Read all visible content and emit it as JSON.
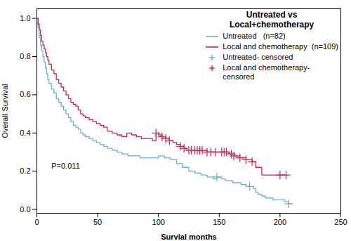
{
  "chart_data": {
    "type": "line",
    "title": "Untreated vs\nLocal+chemotherapy",
    "xlabel": "Survial months",
    "ylabel": "Overall Survival",
    "xlim": [
      0,
      250
    ],
    "ylim": [
      -0.02,
      1.05
    ],
    "xticks": [
      0,
      50,
      100,
      150,
      200,
      250
    ],
    "yticks": [
      {
        "value": 0.0,
        "label": "0.0"
      },
      0.2,
      0.4,
      0.6,
      0.8,
      {
        "value": 1.0,
        "label": "1.0"
      }
    ],
    "grid": false,
    "legend": "upper right",
    "annotations": [
      {
        "text": "P=0.011",
        "x": 12,
        "y": 0.215
      }
    ],
    "series": [
      {
        "name": "Untreated   (n=82)",
        "type": "step",
        "color": "#6baed6",
        "x": [
          0,
          1,
          2,
          3,
          4,
          5,
          6,
          7,
          8,
          9,
          10,
          12,
          14,
          16,
          18,
          20,
          22,
          24,
          26,
          28,
          30,
          32,
          34,
          36,
          38,
          40,
          43,
          46,
          49,
          52,
          55,
          58,
          62,
          66,
          70,
          75,
          80,
          85,
          90,
          95,
          100,
          105,
          110,
          115,
          120,
          125,
          130,
          135,
          140,
          145,
          148,
          152,
          155,
          158,
          161,
          165,
          168,
          172,
          175,
          178,
          180,
          182,
          185,
          188,
          191,
          194,
          197,
          200,
          204,
          207,
          210
        ],
        "values": [
          1.0,
          0.95,
          0.9,
          0.86,
          0.83,
          0.8,
          0.77,
          0.74,
          0.71,
          0.68,
          0.66,
          0.63,
          0.61,
          0.58,
          0.56,
          0.54,
          0.52,
          0.5,
          0.48,
          0.46,
          0.44,
          0.43,
          0.42,
          0.4,
          0.39,
          0.38,
          0.37,
          0.36,
          0.35,
          0.34,
          0.33,
          0.32,
          0.31,
          0.3,
          0.29,
          0.28,
          0.28,
          0.27,
          0.27,
          0.27,
          0.28,
          0.27,
          0.26,
          0.24,
          0.22,
          0.2,
          0.19,
          0.18,
          0.17,
          0.16,
          0.17,
          0.16,
          0.15,
          0.15,
          0.14,
          0.14,
          0.13,
          0.12,
          0.12,
          0.11,
          0.09,
          0.08,
          0.07,
          0.06,
          0.06,
          0.05,
          0.05,
          0.05,
          0.04,
          0.03,
          0.03
        ]
      },
      {
        "name": "Local and chemotherapy  (n=109)",
        "type": "step",
        "color": "#c9274b",
        "x": [
          0,
          1,
          2,
          3,
          4,
          5,
          6,
          7,
          8,
          9,
          10,
          12,
          14,
          16,
          18,
          20,
          22,
          24,
          26,
          28,
          30,
          32,
          34,
          36,
          38,
          40,
          43,
          46,
          49,
          52,
          55,
          58,
          62,
          66,
          70,
          74,
          78,
          82,
          86,
          90,
          95,
          98,
          100,
          103,
          106,
          109,
          112,
          115,
          118,
          121,
          123,
          125,
          127,
          130,
          132,
          134,
          136,
          138,
          140,
          143,
          145,
          147,
          150,
          152,
          154,
          156,
          158,
          160,
          162,
          165,
          167,
          169,
          172,
          175,
          177,
          180,
          185,
          190,
          195,
          200,
          205
        ],
        "values": [
          1.0,
          0.97,
          0.94,
          0.91,
          0.88,
          0.86,
          0.84,
          0.82,
          0.8,
          0.78,
          0.76,
          0.73,
          0.71,
          0.68,
          0.66,
          0.64,
          0.62,
          0.6,
          0.58,
          0.56,
          0.55,
          0.54,
          0.52,
          0.5,
          0.49,
          0.48,
          0.47,
          0.46,
          0.45,
          0.44,
          0.43,
          0.41,
          0.4,
          0.39,
          0.38,
          0.4,
          0.39,
          0.38,
          0.37,
          0.37,
          0.36,
          0.4,
          0.39,
          0.38,
          0.37,
          0.36,
          0.35,
          0.34,
          0.33,
          0.32,
          0.31,
          0.31,
          0.31,
          0.31,
          0.31,
          0.31,
          0.31,
          0.31,
          0.3,
          0.3,
          0.3,
          0.3,
          0.3,
          0.3,
          0.3,
          0.3,
          0.29,
          0.29,
          0.28,
          0.28,
          0.27,
          0.27,
          0.26,
          0.26,
          0.25,
          0.22,
          0.18,
          0.18,
          0.18,
          0.18,
          0.18
        ]
      },
      {
        "name": "Untreated- censored",
        "type": "scatter",
        "marker": "+",
        "color": "#6baed6",
        "x": [
          148,
          175,
          207
        ],
        "values": [
          0.17,
          0.12,
          0.03
        ]
      },
      {
        "name": "Local and chemotherapy-\ncensored",
        "type": "scatter",
        "marker": "+",
        "color": "#c9274b",
        "x": [
          98,
          103,
          106,
          109,
          118,
          121,
          125,
          127,
          130,
          132,
          134,
          136,
          140,
          143,
          147,
          152,
          154,
          156,
          160,
          162,
          167,
          172,
          177,
          200,
          205
        ],
        "values": [
          0.4,
          0.38,
          0.37,
          0.36,
          0.33,
          0.32,
          0.31,
          0.31,
          0.31,
          0.31,
          0.31,
          0.31,
          0.3,
          0.3,
          0.3,
          0.3,
          0.3,
          0.3,
          0.29,
          0.28,
          0.27,
          0.26,
          0.25,
          0.18,
          0.18
        ]
      }
    ]
  }
}
